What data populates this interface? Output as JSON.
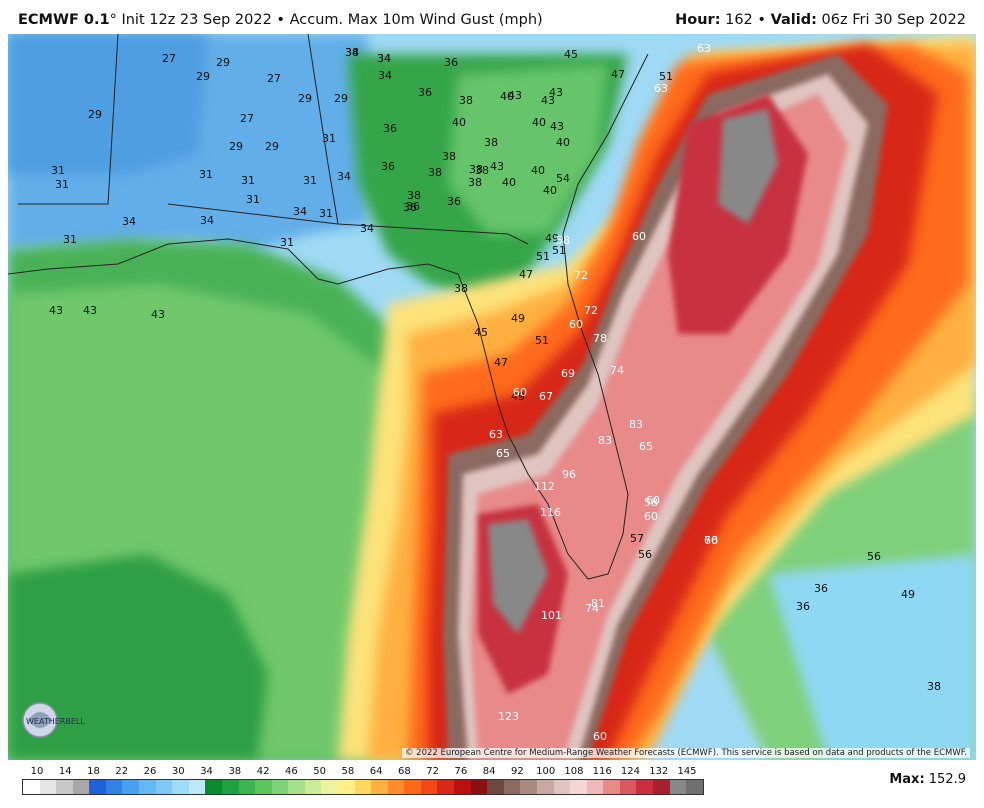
{
  "header": {
    "model": "ECMWF 0.1",
    "init_text": "° Init 12z 23 Sep 2022 • Accum. Max 10m Wind Gust (mph)",
    "hour_label": "Hour:",
    "hour_value": "162",
    "valid_label": "Valid:",
    "valid_value": "06z Fri 30 Sep 2022"
  },
  "map": {
    "copyright": "© 2022 European Centre for Medium-Range Weather Forecasts (ECMWF). This service is based on data and products of the ECMWF.",
    "logo_text": "WEATHERBELL",
    "region": "Florida / Gulf of Mexico / southeastern US",
    "storm": "intense hurricane-force wind swath from Gulf across Florida peninsula into Atlantic",
    "value_labels": [
      "34",
      "34",
      "27",
      "29",
      "27",
      "29",
      "34",
      "29",
      "29",
      "27",
      "29",
      "29",
      "29",
      "31",
      "31",
      "31",
      "31",
      "31",
      "31",
      "34",
      "31",
      "34",
      "34",
      "34",
      "31",
      "34",
      "31",
      "31",
      "36",
      "36",
      "36",
      "36",
      "36",
      "36",
      "36",
      "38",
      "38",
      "38",
      "38",
      "38",
      "38",
      "38",
      "38",
      "38",
      "40",
      "40",
      "40",
      "40",
      "40",
      "40",
      "40",
      "43",
      "43",
      "43",
      "43",
      "43",
      "43",
      "43",
      "43",
      "45",
      "45",
      "47",
      "47",
      "47",
      "49",
      "49",
      "49",
      "51",
      "51",
      "51",
      "51",
      "58",
      "60",
      "60",
      "60",
      "60",
      "60",
      "63",
      "63",
      "63",
      "65",
      "65",
      "67",
      "69",
      "72",
      "72",
      "74",
      "74",
      "78",
      "83",
      "83",
      "96",
      "101",
      "112",
      "116",
      "123",
      "81",
      "76",
      "56",
      "54",
      "57",
      "58",
      "60",
      "60",
      "56",
      "49",
      "36",
      "36",
      "38",
      "38",
      "34"
    ]
  },
  "legend": {
    "ticks": [
      "10",
      "14",
      "18",
      "22",
      "26",
      "30",
      "34",
      "38",
      "42",
      "46",
      "50",
      "58",
      "64",
      "68",
      "72",
      "76",
      "84",
      "92",
      "100",
      "108",
      "116",
      "124",
      "132",
      "145"
    ],
    "colors": [
      "#ffffff",
      "#e6e6e6",
      "#c8c8c8",
      "#a8a8a8",
      "#2060d8",
      "#3580e6",
      "#4aa0f0",
      "#66b8f4",
      "#80c8f6",
      "#a0dcf8",
      "#bde8f6",
      "#0a8a2a",
      "#20a040",
      "#3cb450",
      "#5cc45c",
      "#80d27a",
      "#a6e08e",
      "#c8ec98",
      "#ecf2a0",
      "#fff08a",
      "#ffd860",
      "#ffb040",
      "#ff8c2a",
      "#ff6a1a",
      "#f04818",
      "#d82818",
      "#b81010",
      "#8c1010",
      "#6e4840",
      "#8a6a60",
      "#a88a80",
      "#c8a8a0",
      "#e0c4c0",
      "#f4d6d6",
      "#f0b8b8",
      "#e88a8a",
      "#d85a60",
      "#c83040",
      "#a82030",
      "#888888",
      "#707070"
    ],
    "max_label": "Max:",
    "max_value": "152.9"
  }
}
